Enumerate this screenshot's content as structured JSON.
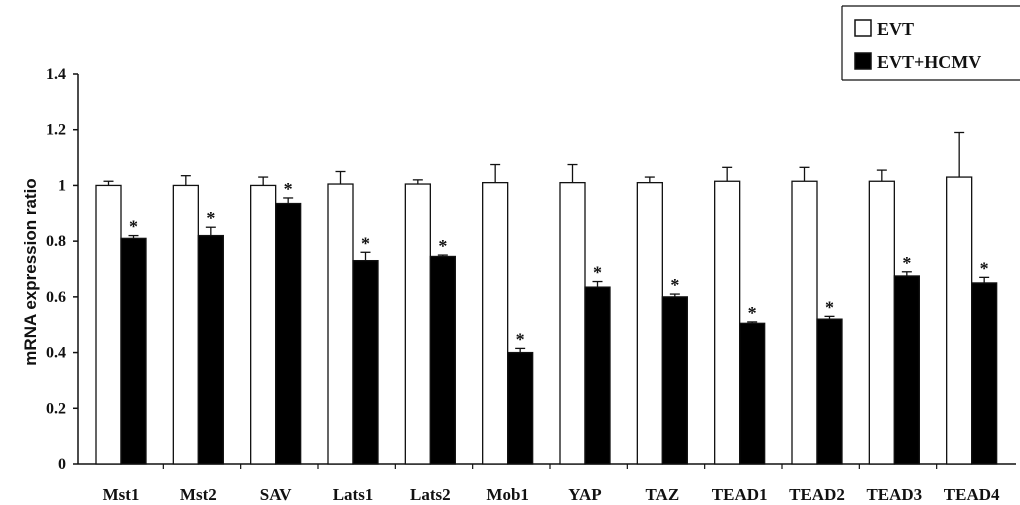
{
  "chart_data": {
    "type": "bar",
    "title": "",
    "xlabel": "",
    "ylabel": "mRNA expression ratio",
    "ylim": [
      0,
      1.4
    ],
    "yticks": [
      "0",
      "0.2",
      "0.4",
      "0.6",
      "0.8",
      "1",
      "1.2",
      "1.4"
    ],
    "categories": [
      "Mst1",
      "Mst2",
      "SAV",
      "Lats1",
      "Lats2",
      "Mob1",
      "YAP",
      "TAZ",
      "TEAD1",
      "TEAD2",
      "TEAD3",
      "TEAD4"
    ],
    "series": [
      {
        "name": "EVT",
        "color": "#ffffff",
        "values": [
          1.0,
          1.0,
          1.0,
          1.005,
          1.005,
          1.01,
          1.01,
          1.01,
          1.015,
          1.015,
          1.015,
          1.03
        ],
        "errors": [
          0.015,
          0.035,
          0.03,
          0.045,
          0.015,
          0.065,
          0.065,
          0.02,
          0.05,
          0.05,
          0.04,
          0.16
        ]
      },
      {
        "name": "EVT+HCMV",
        "color": "#000000",
        "values": [
          0.81,
          0.82,
          0.935,
          0.73,
          0.745,
          0.4,
          0.635,
          0.6,
          0.505,
          0.52,
          0.675,
          0.65
        ],
        "errors": [
          0.01,
          0.03,
          0.02,
          0.03,
          0.005,
          0.015,
          0.02,
          0.01,
          0.005,
          0.01,
          0.015,
          0.02
        ]
      }
    ],
    "significance_marks": [
      "*",
      "*",
      "*",
      "*",
      "*",
      "*",
      "*",
      "*",
      "*",
      "*",
      "*",
      "*"
    ],
    "legend_position": "top-right",
    "grid": false
  }
}
